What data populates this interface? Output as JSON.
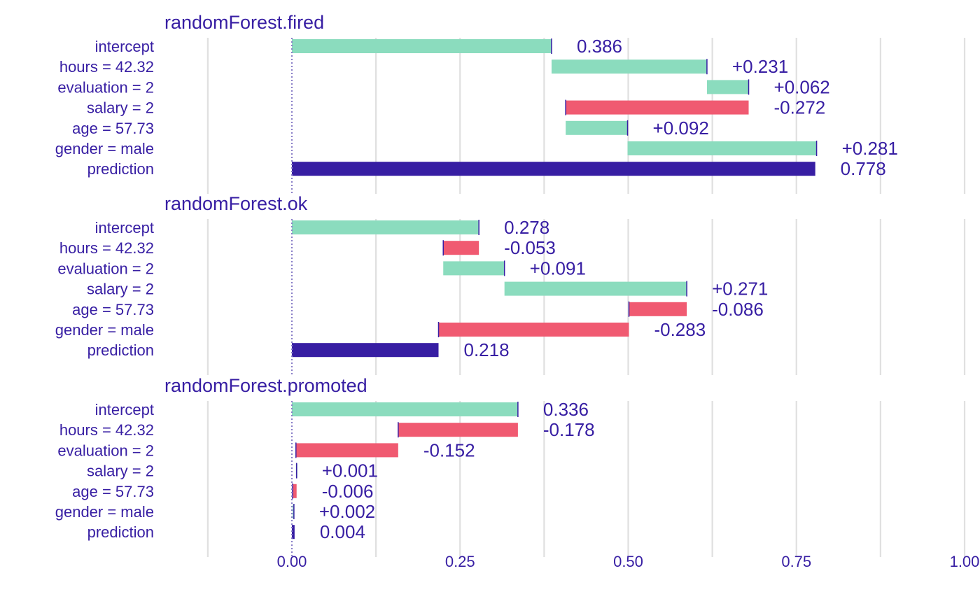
{
  "chart_data": {
    "type": "waterfall",
    "xlim": [
      -0.125,
      1.0
    ],
    "x_ticks": [
      0.0,
      0.25,
      0.5,
      0.75,
      1.0
    ],
    "x_tick_labels": [
      "0.00",
      "0.25",
      "0.50",
      "0.75",
      "1.00"
    ],
    "grid": true,
    "colors": {
      "positive": "#8bdcbe",
      "negative": "#f05a71",
      "prediction": "#371ea3",
      "text": "#371ea3",
      "grid": "#e0e0e0"
    },
    "panels": [
      {
        "title": "randomForest.fired",
        "rows": [
          {
            "label": "intercept",
            "start": 0,
            "end": 0.386,
            "value_label": "0.386",
            "kind": "intercept"
          },
          {
            "label": "hours = 42.32",
            "start": 0.386,
            "end": 0.617,
            "value_label": "+0.231",
            "kind": "positive"
          },
          {
            "label": "evaluation = 2",
            "start": 0.617,
            "end": 0.679,
            "value_label": "+0.062",
            "kind": "positive"
          },
          {
            "label": "salary = 2",
            "start": 0.679,
            "end": 0.407,
            "value_label": "-0.272",
            "kind": "negative"
          },
          {
            "label": "age = 57.73",
            "start": 0.407,
            "end": 0.499,
            "value_label": "+0.092",
            "kind": "positive"
          },
          {
            "label": "gender = male",
            "start": 0.499,
            "end": 0.78,
            "value_label": "+0.281",
            "kind": "positive"
          },
          {
            "label": "prediction",
            "start": 0,
            "end": 0.778,
            "value_label": "0.778",
            "kind": "prediction"
          }
        ]
      },
      {
        "title": "randomForest.ok",
        "rows": [
          {
            "label": "intercept",
            "start": 0,
            "end": 0.278,
            "value_label": "0.278",
            "kind": "intercept"
          },
          {
            "label": "hours = 42.32",
            "start": 0.278,
            "end": 0.225,
            "value_label": "-0.053",
            "kind": "negative"
          },
          {
            "label": "evaluation = 2",
            "start": 0.225,
            "end": 0.316,
            "value_label": "+0.091",
            "kind": "positive"
          },
          {
            "label": "salary = 2",
            "start": 0.316,
            "end": 0.587,
            "value_label": "+0.271",
            "kind": "positive"
          },
          {
            "label": "age = 57.73",
            "start": 0.587,
            "end": 0.501,
            "value_label": "-0.086",
            "kind": "negative"
          },
          {
            "label": "gender = male",
            "start": 0.501,
            "end": 0.218,
            "value_label": "-0.283",
            "kind": "negative"
          },
          {
            "label": "prediction",
            "start": 0,
            "end": 0.218,
            "value_label": "0.218",
            "kind": "prediction"
          }
        ]
      },
      {
        "title": "randomForest.promoted",
        "rows": [
          {
            "label": "intercept",
            "start": 0,
            "end": 0.336,
            "value_label": "0.336",
            "kind": "intercept"
          },
          {
            "label": "hours = 42.32",
            "start": 0.336,
            "end": 0.158,
            "value_label": "-0.178",
            "kind": "negative"
          },
          {
            "label": "evaluation = 2",
            "start": 0.158,
            "end": 0.006,
            "value_label": "-0.152",
            "kind": "negative"
          },
          {
            "label": "salary = 2",
            "start": 0.006,
            "end": 0.007,
            "value_label": "+0.001",
            "kind": "positive"
          },
          {
            "label": "age = 57.73",
            "start": 0.007,
            "end": 0.001,
            "value_label": "-0.006",
            "kind": "negative"
          },
          {
            "label": "gender = male",
            "start": 0.001,
            "end": 0.003,
            "value_label": "+0.002",
            "kind": "positive"
          },
          {
            "label": "prediction",
            "start": 0,
            "end": 0.004,
            "value_label": "0.004",
            "kind": "prediction"
          }
        ]
      }
    ]
  }
}
